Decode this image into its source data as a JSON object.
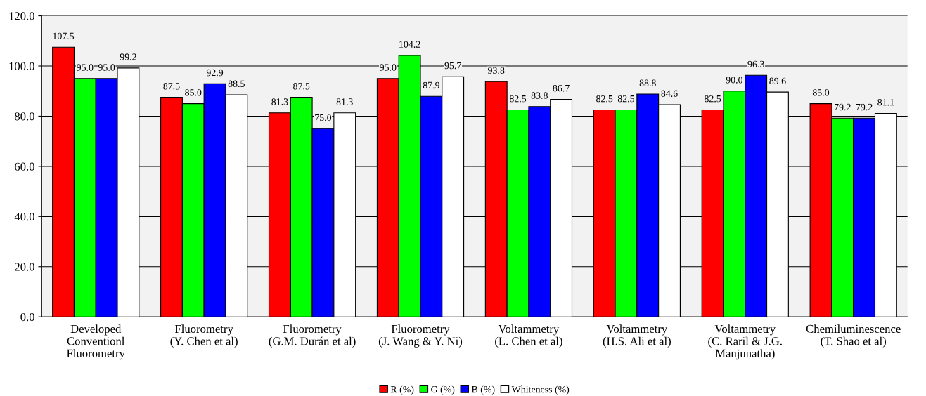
{
  "chart_data": {
    "type": "bar",
    "categories": [
      "Developed\nConventionl\nFluorometry",
      "Fluorometry\n(Y. Chen et al)",
      "Fluorometry\n(G.M. Durán et al)",
      "Fluorometry\n(J. Wang & Y. Ni)",
      "Voltammetry\n(L. Chen et al)",
      "Voltammetry\n(H.S. Ali et al)",
      "Voltammetry\n(C. Raril & J.G.\nManjunatha)",
      "Chemiluminescence\n(T. Shao et al)"
    ],
    "series": [
      {
        "name": "R (%)",
        "color": "#ff0000",
        "values": [
          107.5,
          87.5,
          81.3,
          95.0,
          93.8,
          82.5,
          82.5,
          85.0
        ],
        "value_labels": [
          "107.5",
          "87.5",
          "81.3",
          "95.0",
          "93.8",
          "82.5",
          "82.5",
          "85.0"
        ]
      },
      {
        "name": "G (%)",
        "color": "#00ff00",
        "values": [
          95.0,
          85.0,
          87.5,
          104.2,
          82.5,
          82.5,
          90.0,
          79.2
        ],
        "value_labels": [
          "95.0",
          "85.0",
          "87.5",
          "104.2",
          "82.5",
          "82.5",
          "90.0",
          "79.2"
        ]
      },
      {
        "name": "B (%)",
        "color": "#0000ff",
        "values": [
          95.0,
          92.9,
          75.0,
          87.9,
          83.8,
          88.8,
          96.3,
          79.2
        ],
        "value_labels": [
          "95.0",
          "92.9",
          "75.0",
          "87.9",
          "83.8",
          "88.8",
          "96.3",
          "79.2"
        ]
      },
      {
        "name": "Whiteness (%)",
        "color": "#ffffff",
        "values": [
          99.2,
          88.5,
          81.3,
          95.7,
          86.7,
          84.6,
          89.6,
          81.1
        ],
        "value_labels": [
          "99.2",
          "88.5",
          "81.3",
          "95.7",
          "86.7",
          "84.6",
          "89.6",
          "81.1"
        ]
      }
    ],
    "ylim": [
      0,
      120
    ],
    "yticks": [
      {
        "value": 0,
        "label": "0.0"
      },
      {
        "value": 20,
        "label": "20.0"
      },
      {
        "value": 40,
        "label": "40.0"
      },
      {
        "value": 60,
        "label": "60.0"
      },
      {
        "value": 80,
        "label": "80.0"
      },
      {
        "value": 100,
        "label": "100.0"
      },
      {
        "value": 120,
        "label": "120.0"
      }
    ],
    "grid": "y",
    "legend": "bottom"
  }
}
